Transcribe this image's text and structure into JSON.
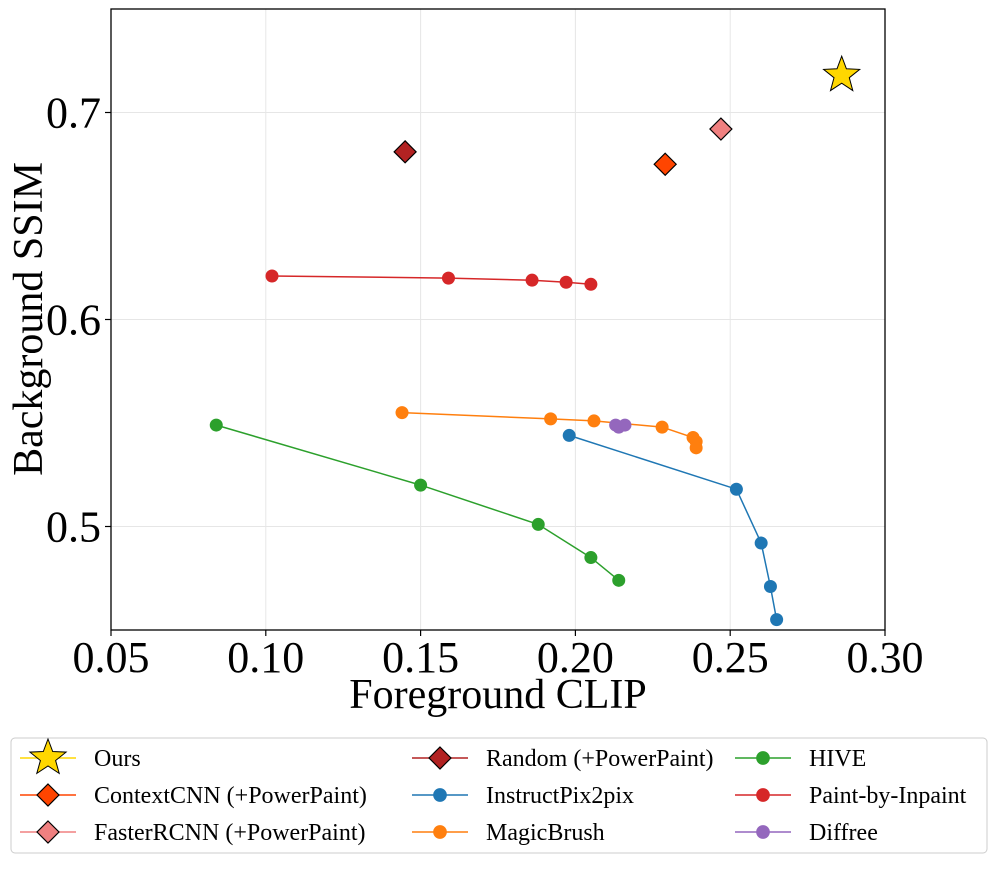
{
  "chart_data": {
    "type": "scatter",
    "xlabel": "Foreground CLIP",
    "ylabel": "Background SSIM",
    "xlim": [
      0.05,
      0.3
    ],
    "ylim": [
      0.45,
      0.75
    ],
    "xticks": [
      "0.05",
      "0.10",
      "0.15",
      "0.20",
      "0.25",
      "0.30"
    ],
    "yticks": [
      "0.5",
      "0.6",
      "0.7"
    ],
    "grid": true,
    "legend_position": "bottom",
    "series": [
      {
        "name": "Ours",
        "marker": "star",
        "color": "#FFD700",
        "edge": "#000000",
        "line": false,
        "x": [
          0.286
        ],
        "y": [
          0.718
        ]
      },
      {
        "name": "ContextCNN (+PowerPaint)",
        "marker": "diamond",
        "color": "#FF4500",
        "edge": "#000000",
        "line": false,
        "x": [
          0.229
        ],
        "y": [
          0.675
        ]
      },
      {
        "name": "FasterRCNN (+PowerPaint)",
        "marker": "diamond",
        "color": "#F08080",
        "edge": "#000000",
        "line": false,
        "x": [
          0.247
        ],
        "y": [
          0.692
        ]
      },
      {
        "name": "Random (+PowerPaint)",
        "marker": "diamond",
        "color": "#B22222",
        "edge": "#000000",
        "line": false,
        "x": [
          0.145
        ],
        "y": [
          0.681
        ]
      },
      {
        "name": "InstructPix2pix",
        "marker": "circle",
        "color": "#1f77b4",
        "line": true,
        "x": [
          0.198,
          0.252,
          0.26,
          0.263,
          0.265
        ],
        "y": [
          0.544,
          0.518,
          0.492,
          0.471,
          0.455
        ]
      },
      {
        "name": "MagicBrush",
        "marker": "circle",
        "color": "#ff7f0e",
        "line": true,
        "x": [
          0.144,
          0.192,
          0.206,
          0.228,
          0.238,
          0.239,
          0.239
        ],
        "y": [
          0.555,
          0.552,
          0.551,
          0.548,
          0.543,
          0.541,
          0.538
        ]
      },
      {
        "name": "HIVE",
        "marker": "circle",
        "color": "#2ca02c",
        "line": true,
        "x": [
          0.084,
          0.15,
          0.188,
          0.205,
          0.214
        ],
        "y": [
          0.549,
          0.52,
          0.501,
          0.485,
          0.474
        ]
      },
      {
        "name": "Paint-by-Inpaint",
        "marker": "circle",
        "color": "#d62728",
        "line": true,
        "x": [
          0.102,
          0.159,
          0.186,
          0.197,
          0.205
        ],
        "y": [
          0.621,
          0.62,
          0.619,
          0.618,
          0.617
        ]
      },
      {
        "name": "Diffree",
        "marker": "circle",
        "color": "#9467bd",
        "line": true,
        "x": [
          0.213,
          0.214,
          0.216
        ],
        "y": [
          0.549,
          0.548,
          0.549
        ]
      }
    ],
    "legend_order": [
      "Ours",
      "ContextCNN (+PowerPaint)",
      "FasterRCNN (+PowerPaint)",
      "Random (+PowerPaint)",
      "InstructPix2pix",
      "MagicBrush",
      "HIVE",
      "Paint-by-Inpaint",
      "Diffree"
    ]
  }
}
